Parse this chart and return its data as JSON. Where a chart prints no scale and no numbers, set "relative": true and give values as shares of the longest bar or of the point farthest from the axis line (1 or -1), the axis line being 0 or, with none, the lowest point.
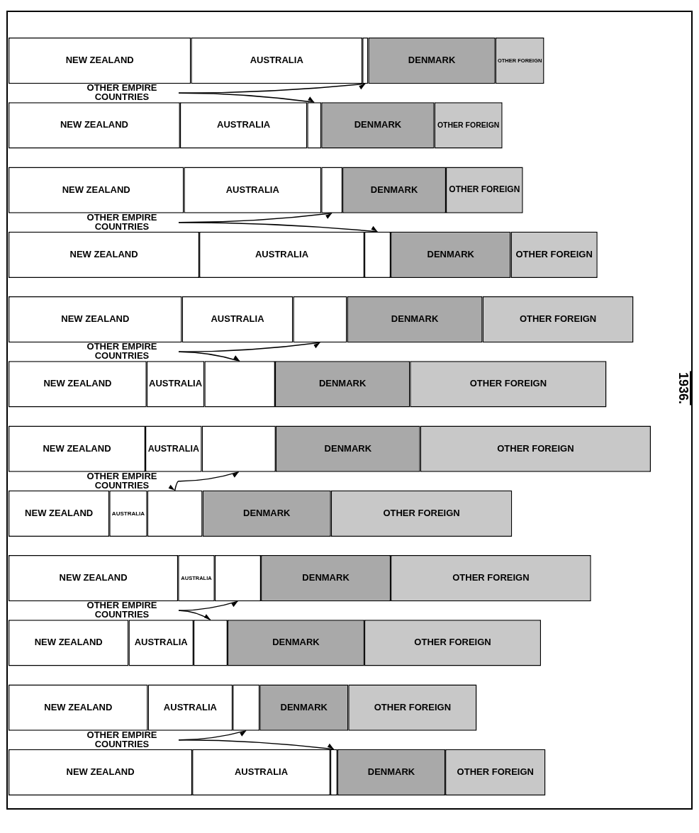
{
  "chart_data": {
    "type": "bar",
    "orientation": "horizontal",
    "stacked": true,
    "relative": true,
    "categories": [
      null,
      null,
      null,
      null,
      null,
      null,
      null,
      null,
      null,
      null,
      null,
      null
    ],
    "series": [
      {
        "name": "NEW ZEALAND",
        "color": "#ffffff",
        "values": [
          0.284,
          0.267,
          0.273,
          0.297,
          0.27,
          0.215,
          0.213,
          0.157,
          0.264,
          0.187,
          0.217,
          0.286
        ]
      },
      {
        "name": "AUSTRALIA",
        "color": "#ffffff",
        "values": [
          0.267,
          0.198,
          0.214,
          0.257,
          0.173,
          0.09,
          0.088,
          0.059,
          0.057,
          0.101,
          0.132,
          0.215
        ]
      },
      {
        "color": "#ffffff",
        "values": [
          0.009,
          0.022,
          0.033,
          0.041,
          0.084,
          0.11,
          0.115,
          0.086,
          0.072,
          0.053,
          0.042,
          0.011
        ]
      },
      {
        "name": "DENMARK",
        "color": "#a9a9a9",
        "values": [
          0.198,
          0.176,
          0.161,
          0.187,
          0.211,
          0.21,
          0.225,
          0.2,
          0.202,
          0.213,
          0.138,
          0.168
        ]
      },
      {
        "name": "OTHER FOREIGN",
        "color": "#c8c8c8",
        "values": [
          0.076,
          0.106,
          0.12,
          0.135,
          0.235,
          0.306,
          0.359,
          0.282,
          0.312,
          0.275,
          0.2,
          0.156
        ]
      }
    ],
    "annotations": [
      "OTHER EMPIRE COUNTRIES",
      "OTHER EMPIRE COUNTRIES",
      "OTHER EMPIRE COUNTRIES",
      "OTHER EMPIRE COUNTRIES",
      "OTHER EMPIRE COUNTRIES",
      "OTHER EMPIRE COUNTRIES",
      "1936."
    ]
  }
}
